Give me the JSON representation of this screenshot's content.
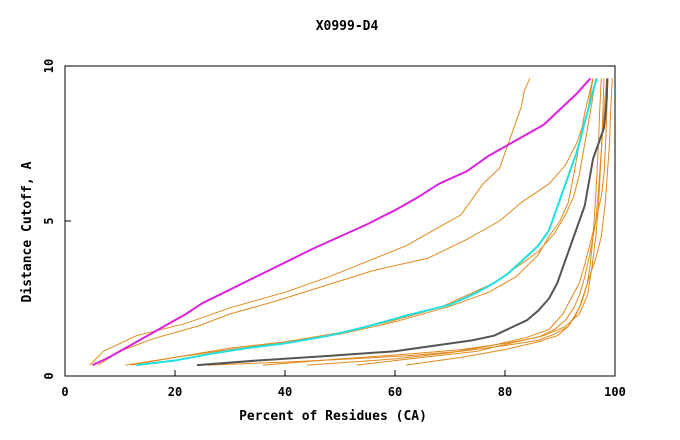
{
  "chart_data": {
    "type": "line",
    "title": "X0999-D4",
    "xlabel": "Percent of Residues (CA)",
    "ylabel": "Distance Cutoff, A",
    "xlim": [
      0,
      100
    ],
    "ylim": [
      0,
      10
    ],
    "xticks": [
      "0",
      "20",
      "40",
      "60",
      "80",
      "100"
    ],
    "yticks": [
      "0",
      "5",
      "10"
    ],
    "colors": {
      "orange": "#e08a1e",
      "magenta": "#dd22dd",
      "cyan": "#22e0e0",
      "gray": "#555555",
      "frame": "#000000"
    },
    "series": [
      {
        "name": "orange-1",
        "color": "orange",
        "points": [
          [
            4.5,
            0.35
          ],
          [
            7,
            0.8
          ],
          [
            13,
            1.3
          ],
          [
            22,
            1.7
          ],
          [
            30,
            2.2
          ],
          [
            40,
            2.7
          ],
          [
            48,
            3.2
          ],
          [
            55,
            3.7
          ],
          [
            62,
            4.2
          ],
          [
            67,
            4.7
          ],
          [
            72,
            5.2
          ],
          [
            74,
            5.7
          ],
          [
            76,
            6.2
          ],
          [
            79,
            6.7
          ],
          [
            80,
            7.2
          ],
          [
            81,
            7.7
          ],
          [
            82,
            8.2
          ],
          [
            83,
            8.7
          ],
          [
            83.5,
            9.2
          ],
          [
            84.5,
            9.6
          ]
        ]
      },
      {
        "name": "orange-2",
        "color": "orange",
        "points": [
          [
            6,
            0.35
          ],
          [
            10,
            0.8
          ],
          [
            16,
            1.2
          ],
          [
            24,
            1.6
          ],
          [
            30,
            2.0
          ],
          [
            38,
            2.4
          ],
          [
            47,
            2.9
          ],
          [
            56,
            3.4
          ],
          [
            66,
            3.8
          ],
          [
            73,
            4.4
          ],
          [
            79,
            5.0
          ],
          [
            83,
            5.6
          ],
          [
            88,
            6.2
          ],
          [
            91,
            6.8
          ],
          [
            93,
            7.5
          ],
          [
            95,
            8.5
          ],
          [
            96,
            9.6
          ]
        ]
      },
      {
        "name": "orange-3",
        "color": "orange",
        "points": [
          [
            12,
            0.35
          ],
          [
            20,
            0.6
          ],
          [
            30,
            0.9
          ],
          [
            40,
            1.1
          ],
          [
            50,
            1.4
          ],
          [
            60,
            1.8
          ],
          [
            68,
            2.2
          ],
          [
            73,
            2.6
          ],
          [
            78,
            3.0
          ],
          [
            82,
            3.5
          ],
          [
            86,
            4.0
          ],
          [
            89,
            4.6
          ],
          [
            91,
            5.2
          ],
          [
            92.5,
            5.8
          ],
          [
            93.5,
            6.5
          ],
          [
            94.5,
            7.5
          ],
          [
            95.5,
            8.5
          ],
          [
            96.5,
            9.6
          ]
        ]
      },
      {
        "name": "orange-4",
        "color": "orange",
        "points": [
          [
            11,
            0.35
          ],
          [
            20,
            0.6
          ],
          [
            30,
            0.85
          ],
          [
            40,
            1.1
          ],
          [
            50,
            1.35
          ],
          [
            60,
            1.75
          ],
          [
            70,
            2.25
          ],
          [
            77,
            2.7
          ],
          [
            82,
            3.2
          ],
          [
            86,
            3.9
          ],
          [
            88,
            4.5
          ],
          [
            90,
            5.0
          ],
          [
            91.5,
            5.6
          ],
          [
            92.5,
            6.5
          ],
          [
            93.5,
            7.5
          ],
          [
            94.5,
            8.5
          ],
          [
            96,
            9.6
          ]
        ]
      },
      {
        "name": "orange-5",
        "color": "orange",
        "points": [
          [
            53,
            0.35
          ],
          [
            65,
            0.6
          ],
          [
            75,
            0.8
          ],
          [
            82,
            1.1
          ],
          [
            87,
            1.3
          ],
          [
            91,
            1.6
          ],
          [
            93.5,
            2.0
          ],
          [
            95,
            2.6
          ],
          [
            95.8,
            3.5
          ],
          [
            96.5,
            4.5
          ],
          [
            97,
            5.5
          ],
          [
            97.3,
            6.5
          ],
          [
            97.6,
            7.5
          ],
          [
            97.8,
            8.5
          ],
          [
            98,
            9.6
          ]
        ]
      },
      {
        "name": "orange-6",
        "color": "orange",
        "points": [
          [
            44,
            0.35
          ],
          [
            60,
            0.55
          ],
          [
            70,
            0.75
          ],
          [
            78,
            1.0
          ],
          [
            84,
            1.25
          ],
          [
            88,
            1.5
          ],
          [
            90.5,
            2.0
          ],
          [
            92,
            2.5
          ],
          [
            93.5,
            3.0
          ],
          [
            94.5,
            3.6
          ],
          [
            95.5,
            4.3
          ],
          [
            96.5,
            5.0
          ],
          [
            97.5,
            5.8
          ],
          [
            98,
            6.5
          ],
          [
            98.3,
            7.5
          ],
          [
            98.5,
            8.5
          ],
          [
            98.7,
            9.6
          ]
        ]
      },
      {
        "name": "orange-7",
        "color": "orange",
        "points": [
          [
            36,
            0.35
          ],
          [
            50,
            0.55
          ],
          [
            62,
            0.7
          ],
          [
            72,
            0.85
          ],
          [
            80,
            1.05
          ],
          [
            86,
            1.25
          ],
          [
            89,
            1.5
          ],
          [
            91,
            1.8
          ],
          [
            92.5,
            2.2
          ],
          [
            93.5,
            2.6
          ],
          [
            94.5,
            3.2
          ],
          [
            95.5,
            4.0
          ],
          [
            96.5,
            5.0
          ],
          [
            97,
            6.0
          ],
          [
            97.4,
            7.0
          ],
          [
            97.8,
            8.0
          ],
          [
            98.2,
            9.0
          ],
          [
            98.5,
            9.6
          ]
        ]
      },
      {
        "name": "orange-8",
        "color": "orange",
        "points": [
          [
            62,
            0.35
          ],
          [
            72,
            0.6
          ],
          [
            80,
            0.85
          ],
          [
            86,
            1.1
          ],
          [
            89.5,
            1.3
          ],
          [
            91.5,
            1.6
          ],
          [
            93.5,
            2.2
          ],
          [
            95,
            3.0
          ],
          [
            96.5,
            3.8
          ],
          [
            97.5,
            4.5
          ],
          [
            98.2,
            5.5
          ],
          [
            98.6,
            6.5
          ],
          [
            99,
            7.5
          ],
          [
            99.2,
            8.5
          ],
          [
            99.5,
            9.6
          ]
        ]
      },
      {
        "name": "orange-9",
        "color": "orange",
        "points": [
          [
            26,
            0.35
          ],
          [
            40,
            0.45
          ],
          [
            52,
            0.55
          ],
          [
            62,
            0.65
          ],
          [
            72,
            0.8
          ],
          [
            80,
            0.98
          ],
          [
            86,
            1.15
          ],
          [
            89,
            1.35
          ],
          [
            91.5,
            1.6
          ],
          [
            93,
            2.0
          ],
          [
            94,
            2.4
          ],
          [
            95,
            3.0
          ],
          [
            95.5,
            3.6
          ],
          [
            96,
            4.5
          ],
          [
            96.4,
            5.5
          ],
          [
            96.7,
            6.5
          ],
          [
            97,
            7.5
          ],
          [
            97.2,
            8.5
          ],
          [
            97.5,
            9.6
          ]
        ]
      },
      {
        "name": "magenta",
        "color": "magenta",
        "points": [
          [
            5,
            0.35
          ],
          [
            8,
            0.6
          ],
          [
            12,
            1.0
          ],
          [
            16,
            1.4
          ],
          [
            19,
            1.7
          ],
          [
            22,
            2.0
          ],
          [
            25,
            2.35
          ],
          [
            29,
            2.7
          ],
          [
            33,
            3.05
          ],
          [
            37,
            3.4
          ],
          [
            41,
            3.75
          ],
          [
            45,
            4.1
          ],
          [
            50,
            4.5
          ],
          [
            55,
            4.9
          ],
          [
            60,
            5.35
          ],
          [
            64,
            5.75
          ],
          [
            68,
            6.2
          ],
          [
            73,
            6.6
          ],
          [
            77,
            7.1
          ],
          [
            82,
            7.6
          ],
          [
            87,
            8.1
          ],
          [
            90,
            8.6
          ],
          [
            93,
            9.1
          ],
          [
            95.5,
            9.6
          ]
        ]
      },
      {
        "name": "cyan",
        "color": "cyan",
        "points": [
          [
            13,
            0.35
          ],
          [
            20,
            0.5
          ],
          [
            26,
            0.7
          ],
          [
            33,
            0.9
          ],
          [
            40,
            1.05
          ],
          [
            48,
            1.3
          ],
          [
            55,
            1.6
          ],
          [
            62,
            1.95
          ],
          [
            70,
            2.3
          ],
          [
            75,
            2.7
          ],
          [
            78,
            3.0
          ],
          [
            80.5,
            3.3
          ],
          [
            83,
            3.7
          ],
          [
            86,
            4.2
          ],
          [
            88,
            4.7
          ],
          [
            89,
            5.2
          ],
          [
            90,
            5.7
          ],
          [
            91,
            6.2
          ],
          [
            92,
            6.7
          ],
          [
            93,
            7.2
          ],
          [
            93.8,
            7.7
          ],
          [
            94.5,
            8.2
          ],
          [
            95.3,
            8.7
          ],
          [
            96,
            9.2
          ],
          [
            96.7,
            9.6
          ]
        ]
      },
      {
        "name": "gray",
        "color": "gray",
        "points": [
          [
            24,
            0.35
          ],
          [
            35,
            0.5
          ],
          [
            48,
            0.65
          ],
          [
            60,
            0.8
          ],
          [
            68,
            1.0
          ],
          [
            74,
            1.15
          ],
          [
            78,
            1.3
          ],
          [
            81,
            1.55
          ],
          [
            84,
            1.8
          ],
          [
            86,
            2.1
          ],
          [
            88,
            2.5
          ],
          [
            89.5,
            3.0
          ],
          [
            90.5,
            3.5
          ],
          [
            91.5,
            4.0
          ],
          [
            92.5,
            4.5
          ],
          [
            93.5,
            5.0
          ],
          [
            94.5,
            5.5
          ],
          [
            95,
            6.0
          ],
          [
            95.5,
            6.5
          ],
          [
            96,
            7.0
          ],
          [
            97,
            7.5
          ],
          [
            98,
            8.0
          ],
          [
            98.3,
            8.5
          ],
          [
            98.5,
            9.0
          ],
          [
            98.6,
            9.6
          ]
        ]
      }
    ]
  }
}
